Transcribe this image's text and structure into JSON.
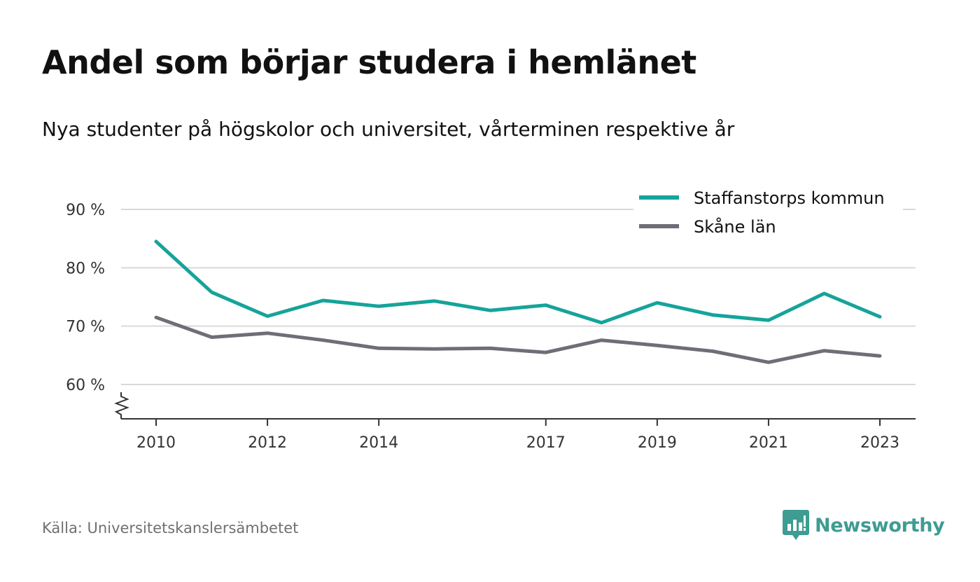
{
  "title": "Andel som börjar studera i hemlänet",
  "subtitle": "Nya studenter på högskolor och universitet, vårterminen respektive år",
  "source": "Källa: Universitetskanslersämbetet",
  "brand": "Newsworthy",
  "colors": {
    "accent": "#16a39a",
    "secondary": "#6e6e77",
    "grid": "#d9d9d9",
    "brand": "#3e9c92"
  },
  "chart_data": {
    "type": "line",
    "x": [
      2010,
      2011,
      2012,
      2013,
      2014,
      2015,
      2016,
      2017,
      2018,
      2019,
      2020,
      2021,
      2022,
      2023
    ],
    "x_tick_labels": [
      "2010",
      "2012",
      "2014",
      "2017",
      "2019",
      "2021",
      "2023"
    ],
    "x_tick_values": [
      2010,
      2012,
      2014,
      2017,
      2019,
      2021,
      2023
    ],
    "y_tick_labels": [
      "60 %",
      "70 %",
      "80 %",
      "90 %"
    ],
    "y_tick_values": [
      60,
      70,
      80,
      90
    ],
    "ylim": [
      54,
      90
    ],
    "y_axis_break": true,
    "grid": true,
    "legend_position": "top-right",
    "series": [
      {
        "name": "Staffanstorps kommun",
        "color": "#16a39a",
        "values": [
          84.5,
          75.8,
          71.7,
          74.4,
          73.4,
          74.3,
          72.7,
          73.6,
          70.6,
          74.0,
          71.9,
          71.0,
          75.6,
          71.6
        ]
      },
      {
        "name": "Skåne län",
        "color": "#6e6e77",
        "values": [
          71.5,
          68.1,
          68.8,
          67.6,
          66.2,
          66.1,
          66.2,
          65.5,
          67.6,
          66.7,
          65.7,
          63.8,
          65.8,
          64.9
        ]
      }
    ]
  }
}
